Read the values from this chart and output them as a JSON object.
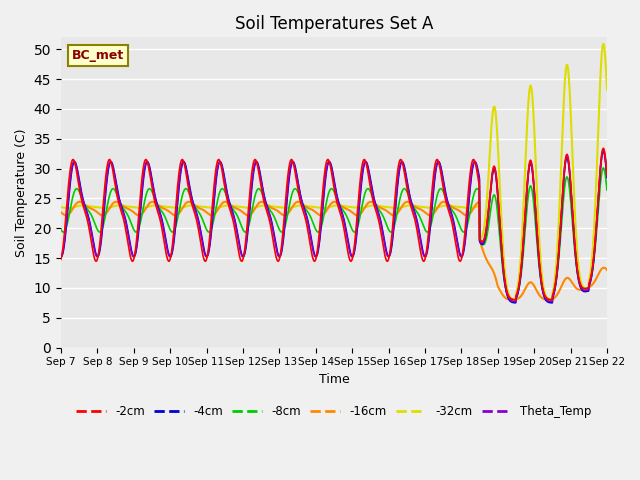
{
  "title": "Soil Temperatures Set A",
  "xlabel": "Time",
  "ylabel": "Soil Temperature (C)",
  "ylim": [
    0,
    52
  ],
  "yticks": [
    0,
    5,
    10,
    15,
    20,
    25,
    30,
    35,
    40,
    45,
    50
  ],
  "x_tick_labels": [
    "Sep 7",
    "Sep 8",
    "Sep 9",
    "Sep 10",
    "Sep 11",
    "Sep 12",
    "Sep 13",
    "Sep 14",
    "Sep 15",
    "Sep 16",
    "Sep 17",
    "Sep 18",
    "Sep 19",
    "Sep 20",
    "Sep 21",
    "Sep 22"
  ],
  "colors": {
    "-2cm": "#ff0000",
    "-4cm": "#0000cc",
    "-8cm": "#00cc00",
    "-16cm": "#ff8800",
    "-32cm": "#dddd00",
    "Theta_Temp": "#8800cc"
  },
  "linewidth": 1.2,
  "annotation_text": "BC_met",
  "bg_color": "#e8e8e8",
  "grid_color": "#ffffff",
  "fig_bg": "#f0f0f0"
}
